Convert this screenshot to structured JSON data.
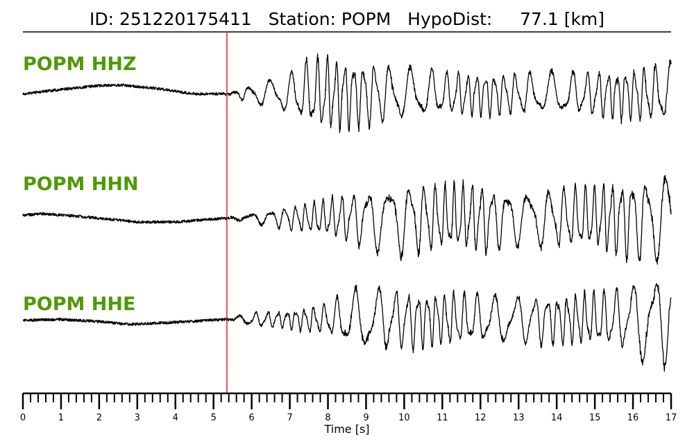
{
  "chart_data": {
    "type": "line",
    "title": "ID: 251220175411   Station: POPM   HypoDist:     77.1 [km]",
    "xlabel": "Time [s]",
    "xlim": [
      0,
      17
    ],
    "major_ticks": [
      "0",
      "1",
      "2",
      "3",
      "4",
      "5",
      "6",
      "7",
      "8",
      "9",
      "10",
      "11",
      "12",
      "13",
      "14",
      "15",
      "16",
      "17"
    ],
    "minor_tick_step": 0.2,
    "pick_time": 5.35,
    "pick_color": "#e8191c",
    "label_color": "#4e9a06",
    "trace_color": "#000000",
    "series": [
      {
        "name": "POPM HHZ",
        "envelope": [
          [
            0,
            0
          ],
          [
            5.35,
            0
          ],
          [
            6,
            0.25
          ],
          [
            7,
            0.55
          ],
          [
            7.5,
            0.9
          ],
          [
            8,
            1.0
          ],
          [
            9,
            0.85
          ],
          [
            10,
            0.7
          ],
          [
            11,
            0.6
          ],
          [
            13,
            0.55
          ],
          [
            15,
            0.6
          ],
          [
            16.5,
            0.75
          ],
          [
            17,
            0.8
          ]
        ],
        "prefix": [
          [
            0,
            -0.03
          ],
          [
            1,
            0.05
          ],
          [
            2,
            0.12
          ],
          [
            2.6,
            0.13
          ],
          [
            3.5,
            0.07
          ],
          [
            4.5,
            -0.03
          ],
          [
            5.35,
            -0.03
          ]
        ]
      },
      {
        "name": "POPM HHN",
        "envelope": [
          [
            0,
            0
          ],
          [
            5.35,
            0
          ],
          [
            6,
            0.1
          ],
          [
            7,
            0.25
          ],
          [
            8,
            0.4
          ],
          [
            9,
            0.65
          ],
          [
            10,
            0.8
          ],
          [
            11,
            0.7
          ],
          [
            12,
            0.75
          ],
          [
            13,
            0.6
          ],
          [
            14,
            0.65
          ],
          [
            15,
            0.7
          ],
          [
            16,
            0.9
          ],
          [
            17,
            1.0
          ]
        ],
        "prefix": [
          [
            0,
            0.02
          ],
          [
            0.5,
            0.05
          ],
          [
            1.5,
            0.0
          ],
          [
            3,
            -0.1
          ],
          [
            4,
            -0.1
          ],
          [
            5.35,
            -0.03
          ]
        ]
      },
      {
        "name": "POPM HHE",
        "envelope": [
          [
            0,
            0
          ],
          [
            5.35,
            0
          ],
          [
            6,
            0.15
          ],
          [
            7,
            0.2
          ],
          [
            8,
            0.35
          ],
          [
            8.5,
            0.6
          ],
          [
            9,
            0.75
          ],
          [
            10,
            0.65
          ],
          [
            12,
            0.55
          ],
          [
            14,
            0.55
          ],
          [
            15,
            0.6
          ],
          [
            15.8,
            0.7
          ],
          [
            16.3,
            1.0
          ],
          [
            17,
            1.0
          ]
        ],
        "prefix": [
          [
            0,
            0.0
          ],
          [
            1,
            0.02
          ],
          [
            2,
            -0.02
          ],
          [
            2.8,
            -0.07
          ],
          [
            4,
            -0.03
          ],
          [
            5.35,
            0.02
          ]
        ]
      }
    ]
  }
}
